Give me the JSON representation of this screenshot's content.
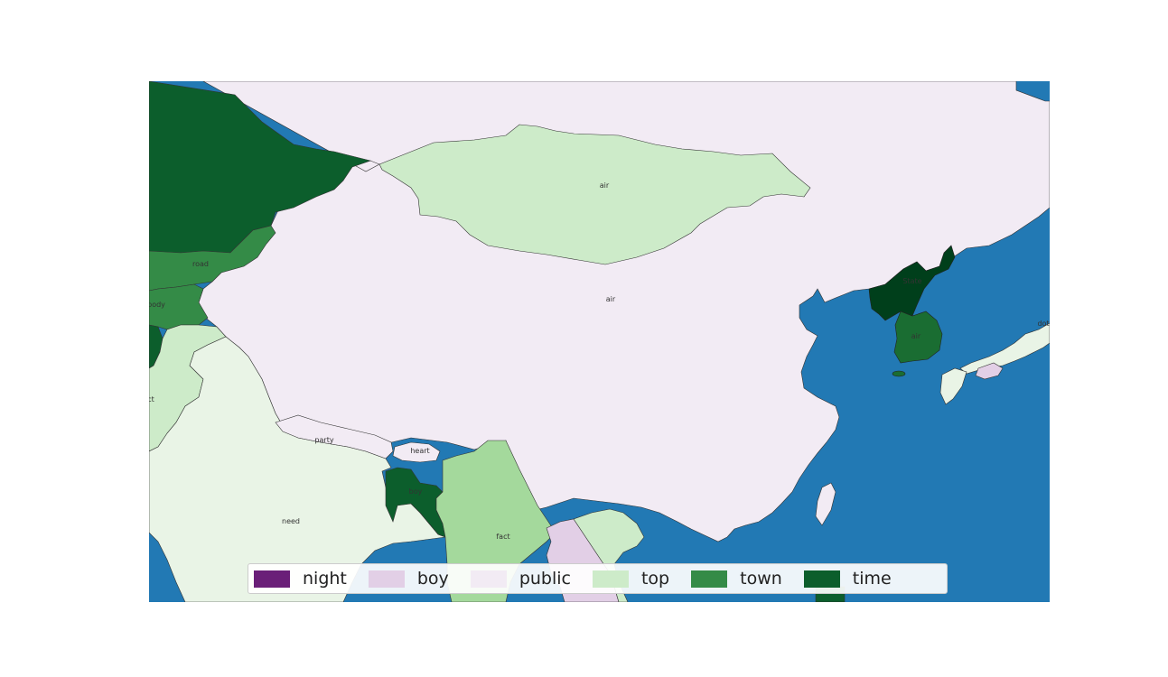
{
  "colors": {
    "water": "#2279b4",
    "border": "#333333"
  },
  "legend": {
    "items": [
      {
        "label": "night",
        "color": "#6a1f78"
      },
      {
        "label": "boy",
        "color": "#e2cfe6"
      },
      {
        "label": "public",
        "color": "#f2ebf4"
      },
      {
        "label": "top",
        "color": "#cdebc9"
      },
      {
        "label": "town",
        "color": "#348b47"
      },
      {
        "label": "time",
        "color": "#0c5e2c"
      }
    ]
  },
  "regions": [
    {
      "id": "russia",
      "category": "time",
      "color": "#0c5e2c",
      "label": ""
    },
    {
      "id": "china",
      "category": "public",
      "color": "#f2ebf4",
      "label": "air"
    },
    {
      "id": "mongolia",
      "category": "top",
      "color": "#cdebc9",
      "label": "air"
    },
    {
      "id": "kazakhstan",
      "category": "town",
      "color": "#348b47",
      "label": "road"
    },
    {
      "id": "kyrgyzstan",
      "category": "town",
      "color": "#348b47",
      "label": "body"
    },
    {
      "id": "afghanistan",
      "category": "top",
      "color": "#cdebc9",
      "label": "ct"
    },
    {
      "id": "india",
      "category": "public",
      "color": "#e9f4e6",
      "label": "need"
    },
    {
      "id": "nepal",
      "category": "public",
      "color": "#f2ebf4",
      "label": "party"
    },
    {
      "id": "bhutan",
      "category": "public",
      "color": "#f2ebf4",
      "label": "heart"
    },
    {
      "id": "bangladesh",
      "category": "time",
      "color": "#0c5e2c",
      "label": "boy"
    },
    {
      "id": "myanmar",
      "category": "top",
      "color": "#a4d99c",
      "label": "fact"
    },
    {
      "id": "laos",
      "category": "boy",
      "color": "#e2cfe6",
      "label": ""
    },
    {
      "id": "vietnam",
      "category": "top",
      "color": "#cdebc9",
      "label": ""
    },
    {
      "id": "north-korea",
      "category": "time",
      "color": "#003f1b",
      "label": "State"
    },
    {
      "id": "south-korea",
      "category": "time",
      "color": "#1a6d32",
      "label": "air"
    },
    {
      "id": "japan",
      "category": "public",
      "color": "#e9f4e6",
      "label": "dot"
    },
    {
      "id": "japan-south",
      "category": "boy",
      "color": "#e2cfe6",
      "label": ""
    },
    {
      "id": "taiwan",
      "category": "public",
      "color": "#f2ebf4",
      "label": ""
    }
  ]
}
